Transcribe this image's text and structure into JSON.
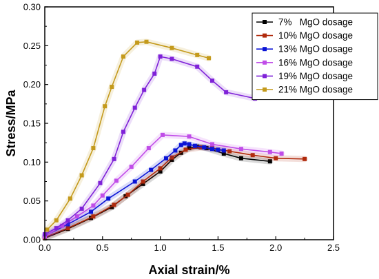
{
  "chart_data": {
    "type": "line",
    "xlabel": "Axial strain/%",
    "ylabel": "Stress/MPa",
    "xlim": [
      0,
      2.5
    ],
    "ylim": [
      0,
      0.3
    ],
    "xticks": [
      "0.0",
      "0.5",
      "1.0",
      "1.5",
      "2.0",
      "2.5"
    ],
    "yticks": [
      "0.00",
      "0.05",
      "0.10",
      "0.15",
      "0.20",
      "0.25",
      "0.30"
    ],
    "legend_position": "top-right",
    "grid": false,
    "series": [
      {
        "name": "7%   MgO dosage",
        "color": "#000000",
        "x": [
          0.0,
          0.2,
          0.4,
          0.58,
          0.7,
          0.85,
          1.0,
          1.1,
          1.18,
          1.25,
          1.32,
          1.4,
          1.55,
          1.7,
          1.95
        ],
        "y": [
          0.002,
          0.014,
          0.028,
          0.042,
          0.056,
          0.072,
          0.088,
          0.103,
          0.112,
          0.118,
          0.12,
          0.118,
          0.111,
          0.105,
          0.101
        ]
      },
      {
        "name": "10% MgO dosage",
        "color": "#b02a0c",
        "x": [
          0.0,
          0.2,
          0.42,
          0.6,
          0.72,
          0.85,
          1.0,
          1.1,
          1.22,
          1.35,
          1.45,
          1.6,
          1.8,
          2.0,
          2.25
        ],
        "y": [
          0.003,
          0.015,
          0.03,
          0.045,
          0.058,
          0.075,
          0.092,
          0.106,
          0.116,
          0.119,
          0.118,
          0.114,
          0.109,
          0.105,
          0.104
        ]
      },
      {
        "name": "13% MgO dosage",
        "color": "#0a14d6",
        "x": [
          0.0,
          0.2,
          0.4,
          0.55,
          0.78,
          0.92,
          1.05,
          1.13,
          1.18,
          1.21,
          1.25,
          1.3,
          1.38,
          1.45,
          1.5,
          1.55
        ],
        "y": [
          0.005,
          0.02,
          0.036,
          0.053,
          0.075,
          0.09,
          0.105,
          0.115,
          0.122,
          0.124,
          0.123,
          0.121,
          0.119,
          0.117,
          0.116,
          0.115
        ]
      },
      {
        "name": "16% MgO dosage",
        "color": "#c04de8",
        "x": [
          0.0,
          0.15,
          0.28,
          0.42,
          0.5,
          0.62,
          0.75,
          0.9,
          1.02,
          1.25,
          1.45,
          1.7,
          1.95,
          2.05
        ],
        "y": [
          0.004,
          0.018,
          0.03,
          0.044,
          0.057,
          0.076,
          0.094,
          0.118,
          0.135,
          0.133,
          0.123,
          0.117,
          0.113,
          0.111
        ]
      },
      {
        "name": "19% MgO dosage",
        "color": "#7f22d8",
        "x": [
          0.0,
          0.1,
          0.2,
          0.32,
          0.48,
          0.6,
          0.68,
          0.78,
          0.86,
          0.95,
          1.0,
          1.1,
          1.32,
          1.45,
          1.57,
          1.82
        ],
        "y": [
          0.007,
          0.015,
          0.025,
          0.04,
          0.073,
          0.104,
          0.139,
          0.17,
          0.193,
          0.214,
          0.236,
          0.233,
          0.223,
          0.205,
          0.19,
          0.182
        ]
      },
      {
        "name": "21% MgO dosage",
        "color": "#c49a1c",
        "x": [
          0.02,
          0.1,
          0.22,
          0.32,
          0.42,
          0.52,
          0.58,
          0.68,
          0.8,
          0.88,
          1.1,
          1.32,
          1.42
        ],
        "y": [
          0.013,
          0.025,
          0.053,
          0.083,
          0.118,
          0.172,
          0.197,
          0.236,
          0.254,
          0.255,
          0.247,
          0.238,
          0.234
        ]
      }
    ]
  }
}
